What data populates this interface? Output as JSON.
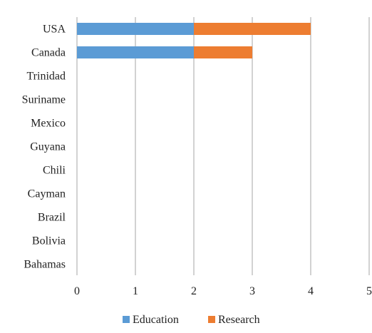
{
  "chart_data": {
    "type": "bar",
    "orientation": "horizontal",
    "stacked": true,
    "categories": [
      "USA",
      "Canada",
      "Trinidad",
      "Suriname",
      "Mexico",
      "Guyana",
      "Chili",
      "Cayman",
      "Brazil",
      "Bolivia",
      "Bahamas"
    ],
    "series": [
      {
        "name": "Education",
        "color": "#5b9bd5",
        "values": [
          2,
          2,
          0,
          0,
          0,
          0,
          0,
          0,
          0,
          0,
          0
        ]
      },
      {
        "name": "Research",
        "color": "#ed7d31",
        "values": [
          2,
          1,
          0,
          0,
          0,
          0,
          0,
          0,
          0,
          0,
          0
        ]
      }
    ],
    "xlim": [
      0,
      5
    ],
    "xticks": [
      "0",
      "1",
      "2",
      "3",
      "4",
      "5"
    ],
    "grid": "vertical",
    "legend": "bottom"
  }
}
